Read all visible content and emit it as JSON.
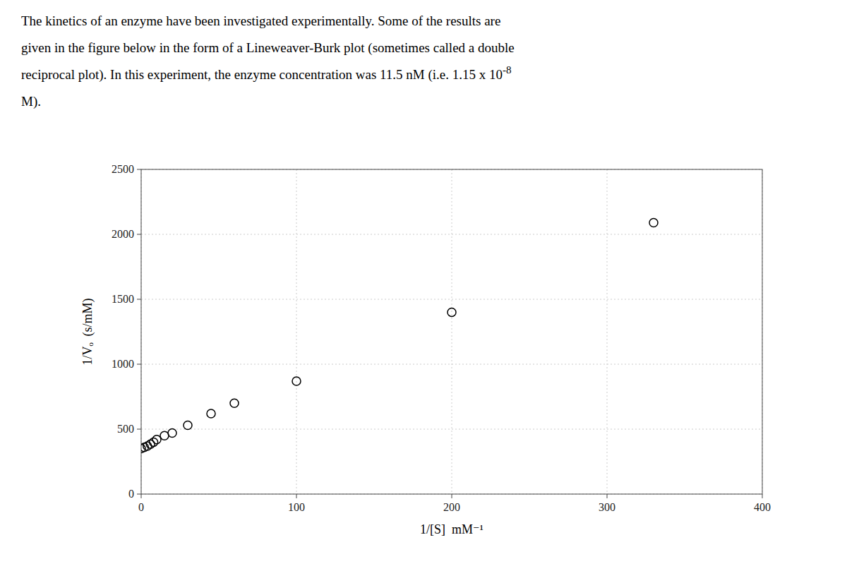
{
  "chart_data": {
    "type": "scatter",
    "annotations": [
      "The kinetics of an enzyme have been investigated experimentally. Some of the results are",
      "given in the figure below in the form of a Lineweaver-Burk plot (sometimes called a double",
      "reciprocal plot). In this experiment, the enzyme concentration was 11.5 nM (i.e. 1.15 x 10",
      "-8",
      "M)."
    ],
    "x_label": "1/[S]  mM⁻¹",
    "y_label": "1/Vₒ  (s/mM)",
    "x": [
      0,
      2,
      4,
      6,
      8,
      10,
      15,
      20,
      30,
      45,
      60,
      100,
      200,
      330
    ],
    "values": [
      350,
      360,
      370,
      385,
      400,
      420,
      450,
      470,
      530,
      620,
      700,
      870,
      1400,
      2090
    ],
    "color": "#000000",
    "marker": "circle-open",
    "xlim": [
      0,
      400
    ],
    "ylim": [
      0,
      2500
    ],
    "xticks": [
      0,
      100,
      200,
      300,
      400
    ],
    "yticks": [
      0,
      500,
      1000,
      1500,
      2000,
      2500
    ],
    "grid": true
  }
}
